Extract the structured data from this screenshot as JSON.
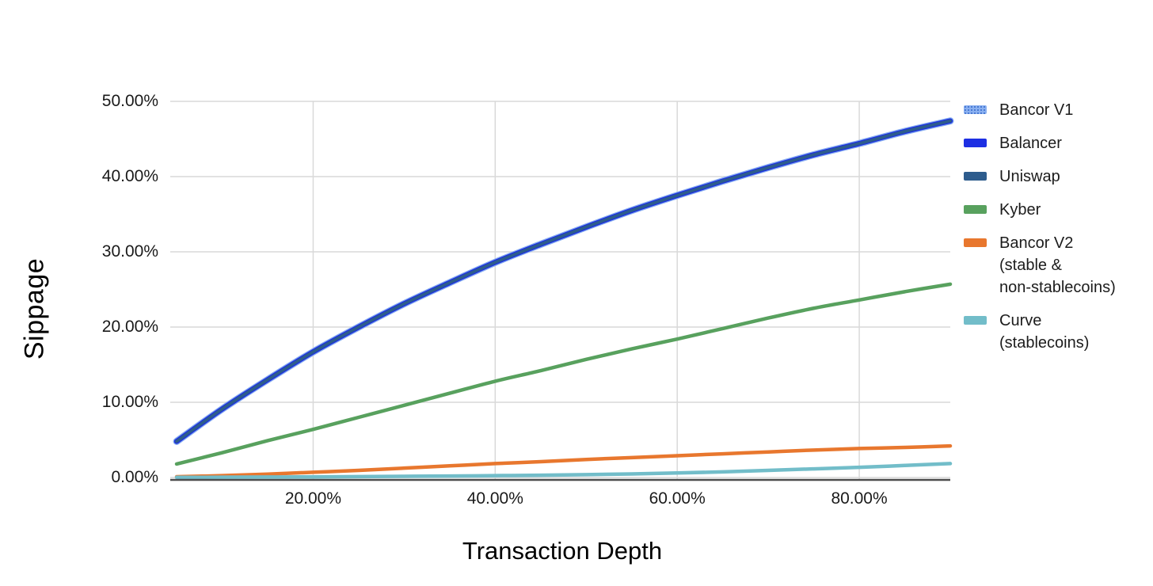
{
  "chart_data": {
    "type": "line",
    "title": "",
    "xlabel": "Transaction Depth",
    "ylabel": "Sippage",
    "grid": true,
    "legend_position": "right",
    "xlim": [
      4.3,
      90
    ],
    "ylim": [
      0,
      50
    ],
    "x_ticks": [
      {
        "value": 20,
        "label": "20.00%"
      },
      {
        "value": 40,
        "label": "40.00%"
      },
      {
        "value": 60,
        "label": "60.00%"
      },
      {
        "value": 80,
        "label": "80.00%"
      }
    ],
    "y_ticks": [
      {
        "value": 0,
        "label": "0.00%"
      },
      {
        "value": 10,
        "label": "10.00%"
      },
      {
        "value": 20,
        "label": "20.00%"
      },
      {
        "value": 30,
        "label": "30.00%"
      },
      {
        "value": 40,
        "label": "40.00%"
      },
      {
        "value": 50,
        "label": "50.00%"
      }
    ],
    "x": [
      5,
      10,
      15,
      20,
      25,
      30,
      35,
      40,
      45,
      50,
      55,
      60,
      65,
      70,
      75,
      80,
      85,
      90
    ],
    "series": [
      {
        "name": "bancor-v1",
        "label_lines": [
          "Bancor V1"
        ],
        "color": "#8ab0f0",
        "swatch_pattern": "dotted",
        "line_width": 9,
        "values": [
          4.8,
          9.1,
          13.0,
          16.7,
          20.0,
          23.1,
          25.9,
          28.6,
          31.0,
          33.3,
          35.5,
          37.5,
          39.4,
          41.2,
          42.9,
          44.4,
          46.0,
          47.4
        ]
      },
      {
        "name": "balancer",
        "label_lines": [
          "Balancer"
        ],
        "color": "#1d2fe3",
        "swatch_pattern": "solid",
        "line_width": 6.5,
        "values": [
          4.8,
          9.1,
          13.0,
          16.7,
          20.0,
          23.1,
          25.9,
          28.6,
          31.0,
          33.3,
          35.5,
          37.5,
          39.4,
          41.2,
          42.9,
          44.4,
          46.0,
          47.4
        ]
      },
      {
        "name": "uniswap",
        "label_lines": [
          "Uniswap"
        ],
        "color": "#2d5c8d",
        "swatch_pattern": "solid",
        "line_width": 4,
        "values": [
          4.8,
          9.1,
          13.0,
          16.7,
          20.0,
          23.1,
          25.9,
          28.6,
          31.0,
          33.3,
          35.5,
          37.5,
          39.4,
          41.2,
          42.9,
          44.4,
          46.0,
          47.4
        ]
      },
      {
        "name": "kyber",
        "label_lines": [
          "Kyber"
        ],
        "color": "#58a15e",
        "swatch_pattern": "solid",
        "line_width": 4.5,
        "values": [
          1.8,
          3.3,
          4.9,
          6.4,
          8.0,
          9.6,
          11.2,
          12.8,
          14.2,
          15.7,
          17.1,
          18.4,
          19.8,
          21.2,
          22.5,
          23.6,
          24.7,
          25.7
        ]
      },
      {
        "name": "bancor-v2",
        "label_lines": [
          "Bancor V2",
          "(stable &",
          "non-stablecoins)"
        ],
        "color": "#e8772e",
        "swatch_pattern": "solid",
        "line_width": 4.5,
        "values": [
          0.1,
          0.25,
          0.45,
          0.7,
          0.95,
          1.25,
          1.55,
          1.85,
          2.1,
          2.4,
          2.65,
          2.9,
          3.15,
          3.4,
          3.65,
          3.85,
          4.0,
          4.2
        ]
      },
      {
        "name": "curve",
        "label_lines": [
          "Curve",
          "(stablecoins)"
        ],
        "color": "#72bdc9",
        "swatch_pattern": "solid",
        "line_width": 4.5,
        "values": [
          0.02,
          0.04,
          0.06,
          0.08,
          0.12,
          0.16,
          0.2,
          0.25,
          0.3,
          0.38,
          0.48,
          0.6,
          0.75,
          0.95,
          1.15,
          1.35,
          1.6,
          1.85
        ]
      }
    ]
  },
  "colors": {
    "background": "#ffffff",
    "grid": "#d9d9d9",
    "axis_line": "#4d4d4d",
    "tick_text": "#1a1a1a"
  }
}
